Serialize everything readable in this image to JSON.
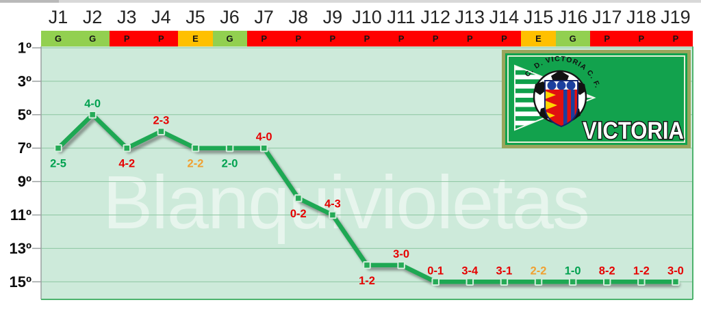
{
  "watermark": {
    "text": "Blanquivioletas"
  },
  "logo": {
    "arc_text": "C. D. VICTORIA C. F.",
    "club_name": "VICTORIA",
    "bg_color": "#12a24d",
    "border_color": "#9aa55c"
  },
  "chart_data": {
    "type": "line",
    "description": "League position of C.D. Victoria by matchday with match results",
    "x_categories": [
      "J1",
      "J2",
      "J3",
      "J4",
      "J5",
      "J6",
      "J7",
      "J8",
      "J9",
      "J10",
      "J11",
      "J12",
      "J13",
      "J14",
      "J15",
      "J16",
      "J17",
      "J18",
      "J19"
    ],
    "results": [
      "G",
      "G",
      "P",
      "P",
      "E",
      "G",
      "P",
      "P",
      "P",
      "P",
      "P",
      "P",
      "P",
      "P",
      "E",
      "G",
      "P",
      "P",
      "P"
    ],
    "positions": [
      7,
      5,
      7,
      6,
      7,
      7,
      7,
      10,
      11,
      14,
      14,
      15,
      15,
      15,
      15,
      15,
      15,
      15,
      15
    ],
    "scores": [
      "2-5",
      "4-0",
      "4-2",
      "2-3",
      "2-2",
      "2-0",
      "4-0",
      "0-2",
      "4-3",
      "1-2",
      "3-0",
      "0-1",
      "3-4",
      "3-1",
      "2-2",
      "1-0",
      "8-2",
      "1-2",
      "3-0"
    ],
    "score_sides": [
      "below",
      "above",
      "below",
      "above",
      "below",
      "below",
      "above",
      "below",
      "above",
      "below",
      "above",
      "above",
      "above",
      "above",
      "above",
      "above",
      "above",
      "above",
      "above"
    ],
    "y_ticks": [
      "1º",
      "3º",
      "5º",
      "7º",
      "9º",
      "11º",
      "13º",
      "15º"
    ],
    "y_range": [
      1,
      15
    ],
    "y_axis_reversed": true,
    "grid": true,
    "colors": {
      "line": "#1ea853",
      "line_shadow": "#4a4a4a",
      "marker_fill": "#25aa56",
      "marker_border": "#d4eedd",
      "plot_bg": "#cdeada",
      "gridline": "#8cc5a0",
      "axis": "#9aa0a0",
      "plot_border": "#4cb36c",
      "band": {
        "G": "#92d050",
        "P": "#ff0000",
        "E": "#ffc000"
      },
      "score": {
        "G": "#00a14f",
        "P": "#e60000",
        "E": "#f0a030"
      }
    }
  }
}
